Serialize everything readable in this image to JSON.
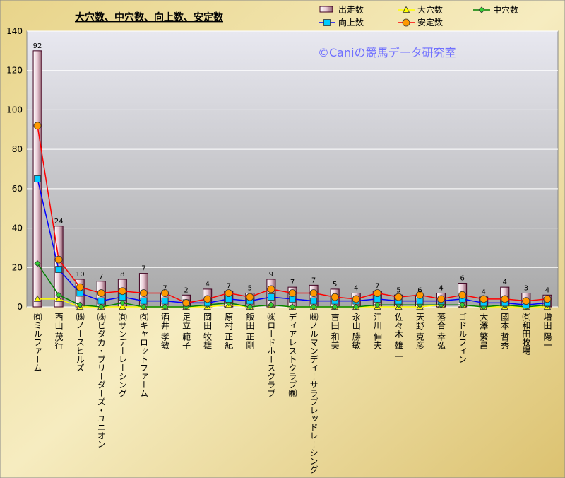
{
  "chart_data": {
    "type": "combo",
    "title": "大穴数、中穴数、向上数、安定数",
    "watermark": "©Caniの競馬データ研究室",
    "categories": [
      "㈲ミルファーム",
      "西山 茂行",
      "㈱ノースヒルズ",
      "㈱ビダカ・ブリーダーズ・ユニオン",
      "㈲サンデーレーシング",
      "㈲キャロットファーム",
      "酒井 孝敏",
      "足立 範子",
      "岡田 牧雄",
      "原村 正紀",
      "飯田 正剛",
      "㈱ロードホースクラブ",
      "ディアレストクラブ㈱",
      "㈱ノルマンディーサラブレッドレーシング",
      "吉田 和美",
      "永山 勝敏",
      "江川 伸夫",
      "佐々木 雄二",
      "天野 克彦",
      "落合 幸弘",
      "ゴドルフィン",
      "大澤 繁昌",
      "國本 哲秀",
      "㈲和田牧場",
      "増田 陽一"
    ],
    "series": [
      {
        "name": "出走数",
        "type": "bar",
        "color": "#f4e4ea",
        "values": [
          130,
          41,
          14,
          13,
          14,
          17,
          7,
          6,
          9,
          8,
          7,
          14,
          10,
          11,
          9,
          7,
          8,
          6,
          6,
          7,
          12,
          5,
          10,
          7,
          6
        ]
      },
      {
        "name": "大穴数",
        "type": "line",
        "color": "#ffff00",
        "marker_color": "#ffff00",
        "marker": "triangle",
        "values": [
          4,
          4,
          0,
          0,
          0,
          0,
          0,
          0,
          0,
          1,
          0,
          1,
          0,
          0,
          0,
          0,
          0,
          0,
          0,
          1,
          1,
          0,
          0,
          0,
          0
        ]
      },
      {
        "name": "中穴数",
        "type": "line",
        "color": "#008000",
        "marker_color": "#33cc33",
        "marker": "diamond",
        "values": [
          22,
          6,
          1,
          0,
          2,
          0,
          0,
          0,
          1,
          2,
          0,
          1,
          0,
          0,
          0,
          0,
          1,
          1,
          1,
          1,
          1,
          0,
          1,
          0,
          1
        ]
      },
      {
        "name": "向上数",
        "type": "line",
        "color": "#0000ff",
        "marker_color": "#00ccff",
        "marker": "square",
        "values": [
          65,
          19,
          7,
          3,
          5,
          3,
          3,
          2,
          2,
          4,
          3,
          5,
          4,
          3,
          3,
          3,
          4,
          3,
          3,
          3,
          4,
          2,
          2,
          1,
          2
        ]
      },
      {
        "name": "安定数",
        "type": "line",
        "color": "#ff0000",
        "marker_color": "#ff9900",
        "marker": "circle",
        "data_labels": true,
        "values": [
          92,
          24,
          10,
          7,
          8,
          7,
          7,
          2,
          4,
          7,
          5,
          9,
          7,
          7,
          5,
          4,
          7,
          5,
          6,
          4,
          6,
          4,
          4,
          3,
          4
        ]
      }
    ],
    "ylim": [
      0,
      140
    ],
    "yticks": [
      0,
      20,
      40,
      60,
      80,
      100,
      120,
      140
    ],
    "grid": true
  }
}
